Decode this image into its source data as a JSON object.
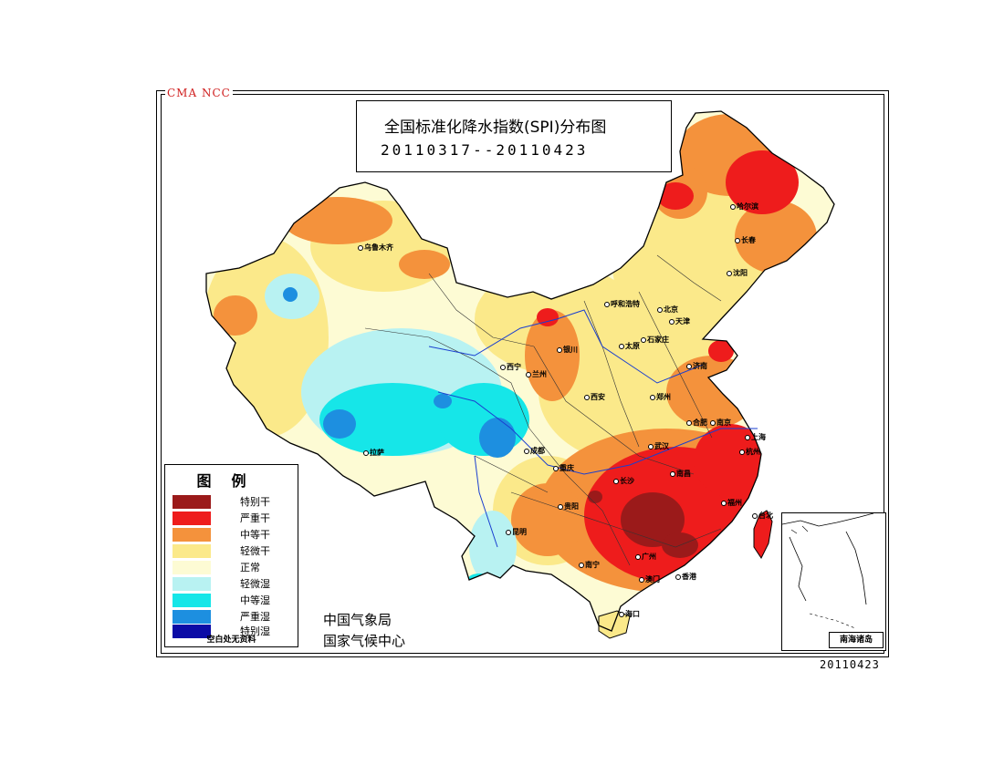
{
  "agency_mark": "CMA NCC",
  "title": {
    "main": "全国标准化降水指数(SPI)分布图",
    "period": "20110317--20110423"
  },
  "legend": {
    "title": "图例",
    "items": [
      {
        "label": "特别干",
        "color": "#9b1a1a"
      },
      {
        "label": "严重干",
        "color": "#ee1c1c"
      },
      {
        "label": "中等干",
        "color": "#f4923c"
      },
      {
        "label": "轻微干",
        "color": "#fbe98a"
      },
      {
        "label": "正常",
        "color": "#fdfbd4"
      },
      {
        "label": "轻微湿",
        "color": "#b8f2f2"
      },
      {
        "label": "中等湿",
        "color": "#16e6e8"
      },
      {
        "label": "严重湿",
        "color": "#1d8fe0"
      },
      {
        "label": "特别湿",
        "color": "#0b0ba6"
      }
    ],
    "note": "空白处无资料"
  },
  "agency": {
    "line1": "中国气象局",
    "line2": "国家气候中心"
  },
  "issue_date": "20110423",
  "inset_label": "南海诸岛",
  "cities": [
    {
      "name": "乌鲁木齐"
    },
    {
      "name": "哈尔滨"
    },
    {
      "name": "长春"
    },
    {
      "name": "沈阳"
    },
    {
      "name": "呼和浩特"
    },
    {
      "name": "北京"
    },
    {
      "name": "天津"
    },
    {
      "name": "石家庄"
    },
    {
      "name": "太原"
    },
    {
      "name": "银川"
    },
    {
      "name": "济南"
    },
    {
      "name": "西宁"
    },
    {
      "name": "兰州"
    },
    {
      "name": "郑州"
    },
    {
      "name": "西安"
    },
    {
      "name": "合肥"
    },
    {
      "name": "南京"
    },
    {
      "name": "上海"
    },
    {
      "name": "武汉"
    },
    {
      "name": "杭州"
    },
    {
      "name": "拉萨"
    },
    {
      "name": "成都"
    },
    {
      "name": "重庆"
    },
    {
      "name": "长沙"
    },
    {
      "name": "南昌"
    },
    {
      "name": "福州"
    },
    {
      "name": "贵阳"
    },
    {
      "name": "台北"
    },
    {
      "name": "昆明"
    },
    {
      "name": "广州"
    },
    {
      "name": "南宁"
    },
    {
      "name": "澳门"
    },
    {
      "name": "香港"
    },
    {
      "name": "海口"
    }
  ]
}
